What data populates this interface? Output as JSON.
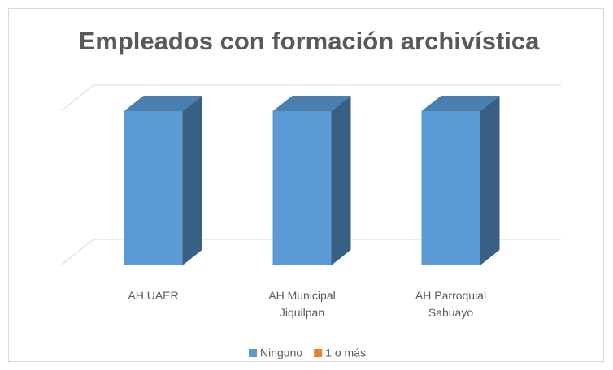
{
  "chart_data": {
    "type": "bar3d",
    "title": "Empleados con formación archivística",
    "categories": [
      "AH UAER",
      "AH Municipal Jiquilpan",
      "AH Parroquial Sahuayo"
    ],
    "series": [
      {
        "name": "Ninguno",
        "color": "#5b9bd5",
        "values": [
          1,
          1,
          1
        ]
      },
      {
        "name": "1 o más",
        "color": "#ed7d31",
        "values": [
          0,
          0,
          0
        ]
      }
    ],
    "ylim": [
      0,
      1
    ],
    "yticks": [
      0,
      1
    ],
    "grid": true,
    "legend": "bottom"
  }
}
